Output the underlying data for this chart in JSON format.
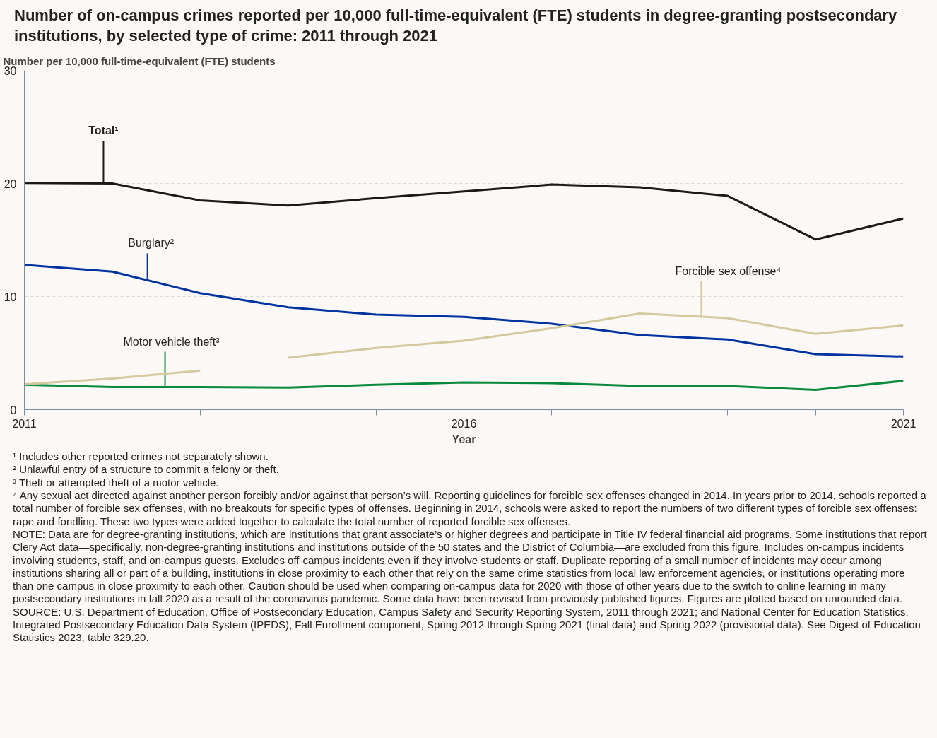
{
  "chart_data": {
    "type": "line",
    "title": "Number of on-campus crimes reported per 10,000 full-time-equivalent (FTE) students in degree-granting postsecondary institutions, by selected type of crime: 2011 through 2021",
    "ylabel": "Number per 10,000 full-time-equivalent (FTE) students",
    "xlabel": "Year",
    "x": [
      2011,
      2012,
      2013,
      2014,
      2015,
      2016,
      2017,
      2018,
      2019,
      2020,
      2021
    ],
    "series": [
      {
        "name": "Total¹",
        "color": "#1a1a1a",
        "values": [
          20.05,
          20.0,
          18.5,
          18.05,
          18.7,
          19.3,
          19.9,
          19.65,
          18.9,
          15.05,
          16.9
        ]
      },
      {
        "name": "Burglary²",
        "color": "#0033a0",
        "values": [
          12.8,
          12.2,
          10.3,
          9.05,
          8.4,
          8.2,
          7.6,
          6.6,
          6.2,
          4.9,
          4.7
        ]
      },
      {
        "name": "Forcible sex offense⁴",
        "color": "#d4c99e",
        "values": [
          null,
          null,
          null,
          4.6,
          5.45,
          6.1,
          7.2,
          8.5,
          8.1,
          6.7,
          7.45
        ]
      },
      {
        "name": "Motor vehicle theft³",
        "color": "#0a8a3c",
        "values": [
          2.2,
          2.0,
          2.0,
          1.95,
          2.2,
          2.4,
          2.35,
          2.1,
          2.1,
          1.75,
          2.55
        ]
      },
      {
        "color": "#d4c99e",
        "values": [
          2.25,
          2.75,
          3.45,
          null,
          null,
          null,
          null,
          null,
          null,
          null,
          null
        ]
      }
    ],
    "xlim": [
      2011,
      2021
    ],
    "ylim": [
      0,
      30
    ],
    "xticks": [
      2011,
      {
        "value": 2012,
        "label": null
      },
      {
        "value": 2013,
        "label": null
      },
      {
        "value": 2014,
        "label": null
      },
      {
        "value": 2015,
        "label": null
      },
      2016,
      {
        "value": 2017,
        "label": null
      },
      {
        "value": 2018,
        "label": null
      },
      {
        "value": 2019,
        "label": null
      },
      {
        "value": 2020,
        "label": null
      },
      2021
    ],
    "yticks": [
      0,
      10,
      20,
      30
    ],
    "grid": "y",
    "annotations": [
      "¹ Includes other reported crimes not separately shown.",
      "² Unlawful entry of a structure to commit a felony or theft.",
      "³ Theft or attempted theft of a motor vehicle.",
      "⁴ Any sexual act directed against another person forcibly and/or against that person’s will. Reporting guidelines for forcible sex offenses changed in 2014. In years prior to 2014, schools reported a total number of forcible sex offenses, with no breakouts for specific types of offenses. Beginning in 2014, schools were asked to report the numbers of two different types of forcible sex offenses: rape and fondling. These two types were added together to calculate the total number of reported forcible sex offenses.",
      "NOTE: Data are for degree-granting institutions, which are institutions that grant associate’s or higher degrees and participate in Title IV federal financial aid programs. Some institutions that report Clery Act data—specifically, non-degree-granting institutions and institutions outside of the 50 states and the District of Columbia—are excluded from this figure. Includes on-campus incidents involving students, staff, and on-campus guests. Excludes off-campus incidents even if they involve students or staff. Duplicate reporting of a small number of incidents may occur among institutions sharing all or part of a building, institutions in close proximity to each other that rely on the same crime statistics from local law enforcement agencies, or institutions operating more than one campus in close proximity to each other. Caution should be used when comparing on-campus data for 2020 with those of other years due to the switch to online learning in many postsecondary institutions in fall 2020 as a result of the coronavirus pandemic. Some data have been revised from previously published figures. Figures are plotted based on unrounded data.",
      "SOURCE: U.S. Department of Education, Office of Postsecondary Education, Campus Safety and Security Reporting System, 2011 through 2021; and National Center for Education Statistics, Integrated Postsecondary Education Data System (IPEDS), Fall Enrollment component, Spring 2012 through Spring 2021 (final data) and Spring 2022 (provisional data). See Digest of Education Statistics 2023, table 329.20."
    ]
  }
}
